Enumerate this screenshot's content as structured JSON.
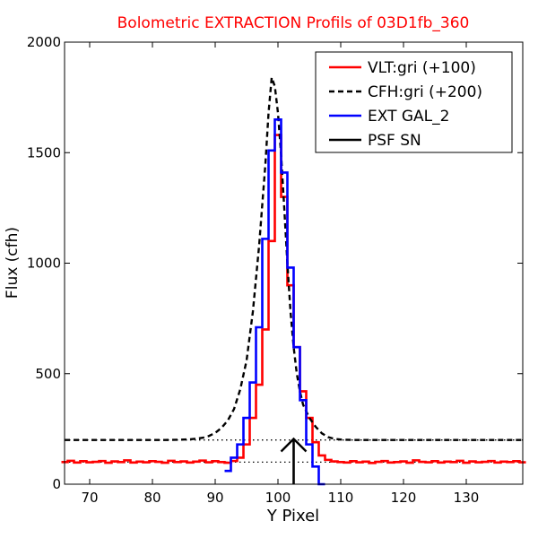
{
  "chart_data": {
    "type": "line",
    "title": "Bolometric EXTRACTION Profils of 03D1fb_360",
    "title_color": "#ff0000",
    "xlabel": "Y Pixel",
    "ylabel": "Flux (cfh)",
    "xlim": [
      66,
      139
    ],
    "ylim": [
      0,
      2000
    ],
    "xticks": [
      70,
      80,
      90,
      100,
      110,
      120,
      130
    ],
    "yticks": [
      0,
      500,
      1000,
      1500,
      2000
    ],
    "xtick_labels": [
      "70",
      "80",
      "90",
      "100",
      "110",
      "120",
      "130"
    ],
    "ytick_labels": [
      "0",
      "500",
      "1000",
      "1500",
      "2000"
    ],
    "grid": false,
    "legend_position": "top-right",
    "series": [
      {
        "name": "VLT:gri (+100)",
        "color": "#ff0000",
        "style": "step",
        "x": [
          66,
          67,
          68,
          69,
          70,
          71,
          72,
          73,
          74,
          75,
          76,
          77,
          78,
          79,
          80,
          81,
          82,
          83,
          84,
          85,
          86,
          87,
          88,
          89,
          90,
          91,
          92,
          93,
          94,
          95,
          96,
          97,
          98,
          99,
          100,
          101,
          102,
          103,
          104,
          105,
          106,
          107,
          108,
          109,
          110,
          111,
          112,
          113,
          114,
          115,
          116,
          117,
          118,
          119,
          120,
          121,
          122,
          123,
          124,
          125,
          126,
          127,
          128,
          129,
          130,
          131,
          132,
          133,
          134,
          135,
          136,
          137,
          138,
          139
        ],
        "y": [
          100,
          106,
          98,
          104,
          99,
          101,
          105,
          97,
          103,
          100,
          108,
          98,
          102,
          99,
          104,
          101,
          97,
          106,
          100,
          103,
          98,
          102,
          107,
          99,
          104,
          100,
          97,
          105,
          120,
          180,
          300,
          450,
          700,
          1100,
          1580,
          1300,
          900,
          620,
          420,
          300,
          190,
          130,
          110,
          103,
          100,
          98,
          104,
          99,
          102,
          96,
          101,
          105,
          98,
          100,
          103,
          97,
          108,
          101,
          99,
          104,
          98,
          102,
          100,
          106,
          97,
          103,
          99,
          101,
          105,
          98,
          102,
          100,
          104,
          99
        ]
      },
      {
        "name": "CFH:gri (+200)",
        "color": "#000000",
        "style": "dashed",
        "x": [
          66,
          68,
          70,
          72,
          74,
          76,
          78,
          80,
          82,
          84,
          86,
          87,
          88,
          89,
          90,
          91,
          92,
          93,
          94,
          95,
          96,
          97,
          98,
          98.5,
          99,
          99.5,
          100,
          100.5,
          101,
          101.5,
          102,
          102.5,
          103,
          103.5,
          104,
          105,
          106,
          107,
          108,
          109,
          110,
          112,
          114,
          116,
          118,
          120,
          124,
          128,
          132,
          136,
          139
        ],
        "y": [
          200,
          200,
          200,
          200,
          200,
          200,
          200,
          200,
          200,
          201,
          203,
          206,
          210,
          218,
          232,
          255,
          288,
          340,
          430,
          560,
          780,
          1080,
          1450,
          1680,
          1840,
          1800,
          1680,
          1490,
          1250,
          1000,
          780,
          620,
          500,
          420,
          360,
          300,
          260,
          230,
          213,
          205,
          202,
          200,
          200,
          200,
          200,
          200,
          200,
          200,
          200,
          200,
          200
        ]
      },
      {
        "name": "EXT GAL_2",
        "color": "#0000ff",
        "style": "step",
        "x": [
          92,
          93,
          94,
          95,
          96,
          97,
          98,
          99,
          100,
          101,
          102,
          103,
          104,
          105,
          106,
          107
        ],
        "y": [
          60,
          120,
          180,
          300,
          460,
          710,
          1110,
          1510,
          1650,
          1410,
          980,
          620,
          380,
          180,
          80,
          0
        ]
      },
      {
        "name": "PSF SN",
        "color": "#000000",
        "style": "solid",
        "x": [],
        "y": []
      }
    ],
    "reference_lines": [
      {
        "y": 100,
        "style": "dotted",
        "color": "#000000"
      },
      {
        "y": 200,
        "style": "dotted",
        "color": "#000000"
      }
    ],
    "annotation_arrow": {
      "x": 102.5,
      "y_from": 0,
      "y_to": 205
    }
  }
}
